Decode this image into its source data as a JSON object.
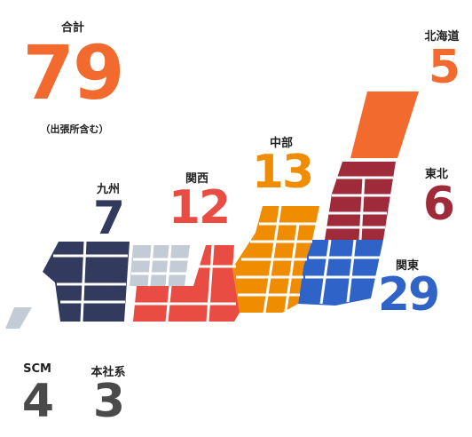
{
  "total": {
    "label": "合計",
    "value": "79",
    "note": "（出張所含む）",
    "color": "#f26a2e"
  },
  "regions": [
    {
      "id": "hokkaido",
      "label": "北海道",
      "value": "5",
      "color": "#f26a2e"
    },
    {
      "id": "tohoku",
      "label": "東北",
      "value": "6",
      "color": "#9e2a3a"
    },
    {
      "id": "chubu",
      "label": "中部",
      "value": "13",
      "color": "#f08c00"
    },
    {
      "id": "kanto",
      "label": "関東",
      "value": "29",
      "color": "#2f63c7"
    },
    {
      "id": "kansai",
      "label": "関西",
      "value": "12",
      "color": "#e84c42"
    },
    {
      "id": "kyushu",
      "label": "九州",
      "value": "7",
      "color": "#323a5e"
    }
  ],
  "others": [
    {
      "id": "scm",
      "label": "SCM",
      "value": "4",
      "color": "#4a4a4a"
    },
    {
      "id": "hq",
      "label": "本社系",
      "value": "3",
      "color": "#4a4a4a"
    }
  ],
  "colors": {
    "okinawa": "#c3ccd6",
    "chugoku": "#c3ccd6",
    "divider": "#ffffff"
  }
}
